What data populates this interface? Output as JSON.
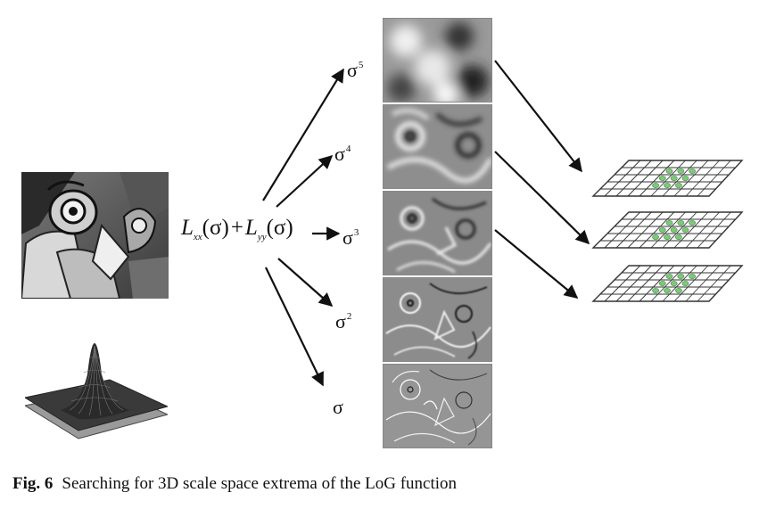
{
  "formula": {
    "lxx": "L",
    "lxx_sub": "xx",
    "lxx_arg": "(σ)",
    "plus": "+",
    "lyy": "L",
    "lyy_sub": "yy",
    "lyy_arg": "(σ)"
  },
  "scales": [
    {
      "base": "σ",
      "exp": "5"
    },
    {
      "base": "σ",
      "exp": "4"
    },
    {
      "base": "σ",
      "exp": "3"
    },
    {
      "base": "σ",
      "exp": "2"
    },
    {
      "base": "σ",
      "exp": ""
    }
  ],
  "caption": {
    "label": "Fig. 6",
    "text": "Searching for 3D scale space extrema of the LoG function"
  },
  "colors": {
    "arrow": "#111111",
    "grid_line": "#333333",
    "extrema_point": "#7dc97a"
  }
}
